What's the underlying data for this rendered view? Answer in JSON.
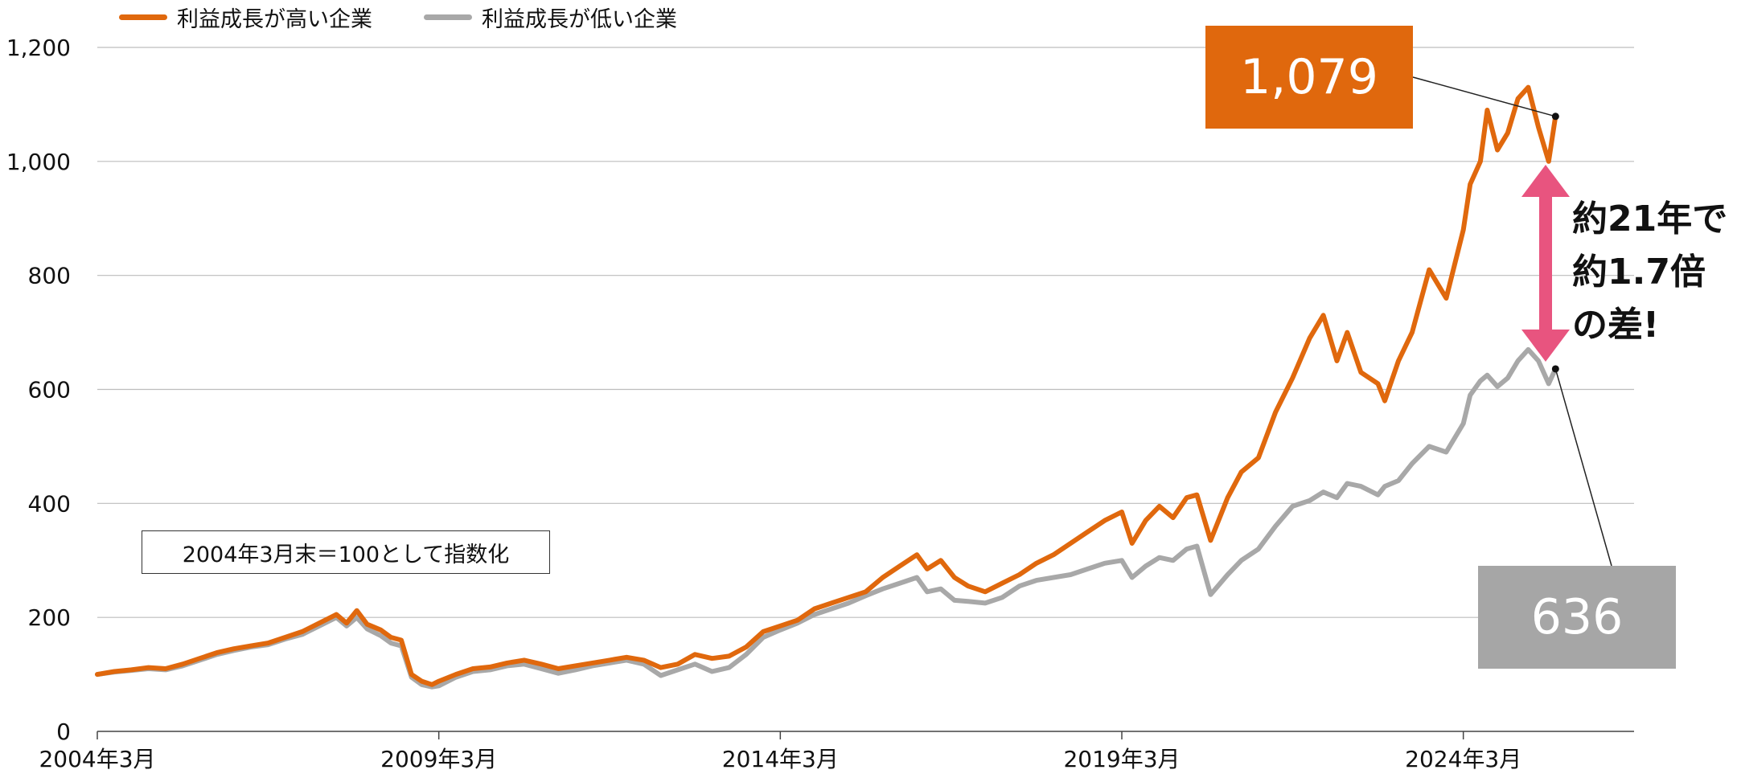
{
  "legend": [
    {
      "label": "利益成長が高い企業",
      "color": "#e0680d"
    },
    {
      "label": "利益成長が低い企業",
      "color": "#a8a8a8"
    }
  ],
  "note": "2004年3月末＝100として指数化",
  "callouts": {
    "high": {
      "label": "1,079",
      "color": "#e0680d"
    },
    "low": {
      "label": "636",
      "color": "#a6a6a6"
    }
  },
  "gap_text": [
    "約21年で",
    "約1.7倍",
    "の差!"
  ],
  "arrow_color": "#e8547f",
  "chart_data": {
    "type": "line",
    "y_ticks": [
      "0",
      "200",
      "400",
      "600",
      "800",
      "1,000",
      "1,200"
    ],
    "ylim": [
      0,
      1200
    ],
    "x_ticks": [
      {
        "label": "2004年3月",
        "year": 2004.25
      },
      {
        "label": "2009年3月",
        "year": 2009.25
      },
      {
        "label": "2014年3月",
        "year": 2014.25
      },
      {
        "label": "2019年3月",
        "year": 2019.25
      },
      {
        "label": "2024年3月",
        "year": 2024.25
      }
    ],
    "xlim": [
      2004.25,
      2026.75
    ],
    "grid": true,
    "series": [
      {
        "name": "利益成長が高い企業",
        "color": "#e0680d",
        "points": [
          [
            2004.25,
            100
          ],
          [
            2004.5,
            105
          ],
          [
            2004.75,
            108
          ],
          [
            2005.0,
            112
          ],
          [
            2005.25,
            110
          ],
          [
            2005.5,
            118
          ],
          [
            2005.75,
            128
          ],
          [
            2006.0,
            138
          ],
          [
            2006.25,
            145
          ],
          [
            2006.5,
            150
          ],
          [
            2006.75,
            155
          ],
          [
            2007.0,
            165
          ],
          [
            2007.25,
            175
          ],
          [
            2007.5,
            190
          ],
          [
            2007.75,
            205
          ],
          [
            2007.9,
            190
          ],
          [
            2008.05,
            212
          ],
          [
            2008.2,
            188
          ],
          [
            2008.4,
            178
          ],
          [
            2008.55,
            165
          ],
          [
            2008.7,
            160
          ],
          [
            2008.85,
            100
          ],
          [
            2009.0,
            88
          ],
          [
            2009.15,
            82
          ],
          [
            2009.25,
            88
          ],
          [
            2009.5,
            100
          ],
          [
            2009.75,
            110
          ],
          [
            2010.0,
            113
          ],
          [
            2010.25,
            120
          ],
          [
            2010.5,
            125
          ],
          [
            2010.75,
            118
          ],
          [
            2011.0,
            110
          ],
          [
            2011.25,
            115
          ],
          [
            2011.5,
            120
          ],
          [
            2011.75,
            125
          ],
          [
            2012.0,
            130
          ],
          [
            2012.25,
            125
          ],
          [
            2012.5,
            112
          ],
          [
            2012.75,
            118
          ],
          [
            2013.0,
            135
          ],
          [
            2013.25,
            128
          ],
          [
            2013.5,
            132
          ],
          [
            2013.75,
            148
          ],
          [
            2014.0,
            175
          ],
          [
            2014.25,
            185
          ],
          [
            2014.5,
            195
          ],
          [
            2014.75,
            215
          ],
          [
            2015.0,
            225
          ],
          [
            2015.25,
            235
          ],
          [
            2015.5,
            245
          ],
          [
            2015.75,
            270
          ],
          [
            2016.0,
            290
          ],
          [
            2016.25,
            310
          ],
          [
            2016.4,
            285
          ],
          [
            2016.6,
            300
          ],
          [
            2016.8,
            270
          ],
          [
            2017.0,
            255
          ],
          [
            2017.25,
            245
          ],
          [
            2017.5,
            260
          ],
          [
            2017.75,
            275
          ],
          [
            2018.0,
            295
          ],
          [
            2018.25,
            310
          ],
          [
            2018.5,
            330
          ],
          [
            2018.75,
            350
          ],
          [
            2019.0,
            370
          ],
          [
            2019.25,
            385
          ],
          [
            2019.4,
            330
          ],
          [
            2019.6,
            370
          ],
          [
            2019.8,
            395
          ],
          [
            2020.0,
            375
          ],
          [
            2020.2,
            410
          ],
          [
            2020.35,
            415
          ],
          [
            2020.55,
            335
          ],
          [
            2020.8,
            410
          ],
          [
            2021.0,
            455
          ],
          [
            2021.25,
            480
          ],
          [
            2021.5,
            560
          ],
          [
            2021.75,
            620
          ],
          [
            2022.0,
            690
          ],
          [
            2022.2,
            730
          ],
          [
            2022.4,
            650
          ],
          [
            2022.55,
            700
          ],
          [
            2022.75,
            630
          ],
          [
            2023.0,
            610
          ],
          [
            2023.1,
            580
          ],
          [
            2023.3,
            650
          ],
          [
            2023.5,
            700
          ],
          [
            2023.75,
            810
          ],
          [
            2024.0,
            760
          ],
          [
            2024.25,
            880
          ],
          [
            2024.35,
            960
          ],
          [
            2024.5,
            1000
          ],
          [
            2024.6,
            1090
          ],
          [
            2024.75,
            1020
          ],
          [
            2024.9,
            1050
          ],
          [
            2025.05,
            1110
          ],
          [
            2025.2,
            1130
          ],
          [
            2025.35,
            1060
          ],
          [
            2025.5,
            1000
          ],
          [
            2025.6,
            1079
          ]
        ]
      },
      {
        "name": "利益成長が低い企業",
        "color": "#a8a8a8",
        "points": [
          [
            2004.25,
            100
          ],
          [
            2004.5,
            104
          ],
          [
            2004.75,
            107
          ],
          [
            2005.0,
            110
          ],
          [
            2005.25,
            108
          ],
          [
            2005.5,
            115
          ],
          [
            2005.75,
            125
          ],
          [
            2006.0,
            135
          ],
          [
            2006.25,
            142
          ],
          [
            2006.5,
            148
          ],
          [
            2006.75,
            152
          ],
          [
            2007.0,
            162
          ],
          [
            2007.25,
            170
          ],
          [
            2007.5,
            185
          ],
          [
            2007.75,
            200
          ],
          [
            2007.9,
            185
          ],
          [
            2008.05,
            200
          ],
          [
            2008.2,
            180
          ],
          [
            2008.4,
            168
          ],
          [
            2008.55,
            155
          ],
          [
            2008.7,
            150
          ],
          [
            2008.85,
            95
          ],
          [
            2009.0,
            82
          ],
          [
            2009.15,
            78
          ],
          [
            2009.25,
            80
          ],
          [
            2009.5,
            95
          ],
          [
            2009.75,
            105
          ],
          [
            2010.0,
            108
          ],
          [
            2010.25,
            115
          ],
          [
            2010.5,
            118
          ],
          [
            2010.75,
            110
          ],
          [
            2011.0,
            102
          ],
          [
            2011.25,
            108
          ],
          [
            2011.5,
            115
          ],
          [
            2011.75,
            120
          ],
          [
            2012.0,
            125
          ],
          [
            2012.25,
            118
          ],
          [
            2012.5,
            98
          ],
          [
            2012.75,
            108
          ],
          [
            2013.0,
            118
          ],
          [
            2013.25,
            105
          ],
          [
            2013.5,
            112
          ],
          [
            2013.75,
            135
          ],
          [
            2014.0,
            165
          ],
          [
            2014.25,
            178
          ],
          [
            2014.5,
            190
          ],
          [
            2014.75,
            205
          ],
          [
            2015.0,
            215
          ],
          [
            2015.25,
            225
          ],
          [
            2015.5,
            238
          ],
          [
            2015.75,
            250
          ],
          [
            2016.0,
            260
          ],
          [
            2016.25,
            270
          ],
          [
            2016.4,
            245
          ],
          [
            2016.6,
            250
          ],
          [
            2016.8,
            230
          ],
          [
            2017.0,
            228
          ],
          [
            2017.25,
            225
          ],
          [
            2017.5,
            235
          ],
          [
            2017.75,
            255
          ],
          [
            2018.0,
            265
          ],
          [
            2018.25,
            270
          ],
          [
            2018.5,
            275
          ],
          [
            2018.75,
            285
          ],
          [
            2019.0,
            295
          ],
          [
            2019.25,
            300
          ],
          [
            2019.4,
            270
          ],
          [
            2019.6,
            290
          ],
          [
            2019.8,
            305
          ],
          [
            2020.0,
            300
          ],
          [
            2020.2,
            320
          ],
          [
            2020.35,
            325
          ],
          [
            2020.55,
            240
          ],
          [
            2020.8,
            275
          ],
          [
            2021.0,
            300
          ],
          [
            2021.25,
            320
          ],
          [
            2021.5,
            360
          ],
          [
            2021.75,
            395
          ],
          [
            2022.0,
            405
          ],
          [
            2022.2,
            420
          ],
          [
            2022.4,
            410
          ],
          [
            2022.55,
            435
          ],
          [
            2022.75,
            430
          ],
          [
            2023.0,
            415
          ],
          [
            2023.1,
            430
          ],
          [
            2023.3,
            440
          ],
          [
            2023.5,
            470
          ],
          [
            2023.75,
            500
          ],
          [
            2024.0,
            490
          ],
          [
            2024.25,
            540
          ],
          [
            2024.35,
            590
          ],
          [
            2024.5,
            615
          ],
          [
            2024.6,
            625
          ],
          [
            2024.75,
            605
          ],
          [
            2024.9,
            620
          ],
          [
            2025.05,
            650
          ],
          [
            2025.2,
            670
          ],
          [
            2025.35,
            650
          ],
          [
            2025.5,
            610
          ],
          [
            2025.6,
            636
          ]
        ]
      }
    ]
  }
}
